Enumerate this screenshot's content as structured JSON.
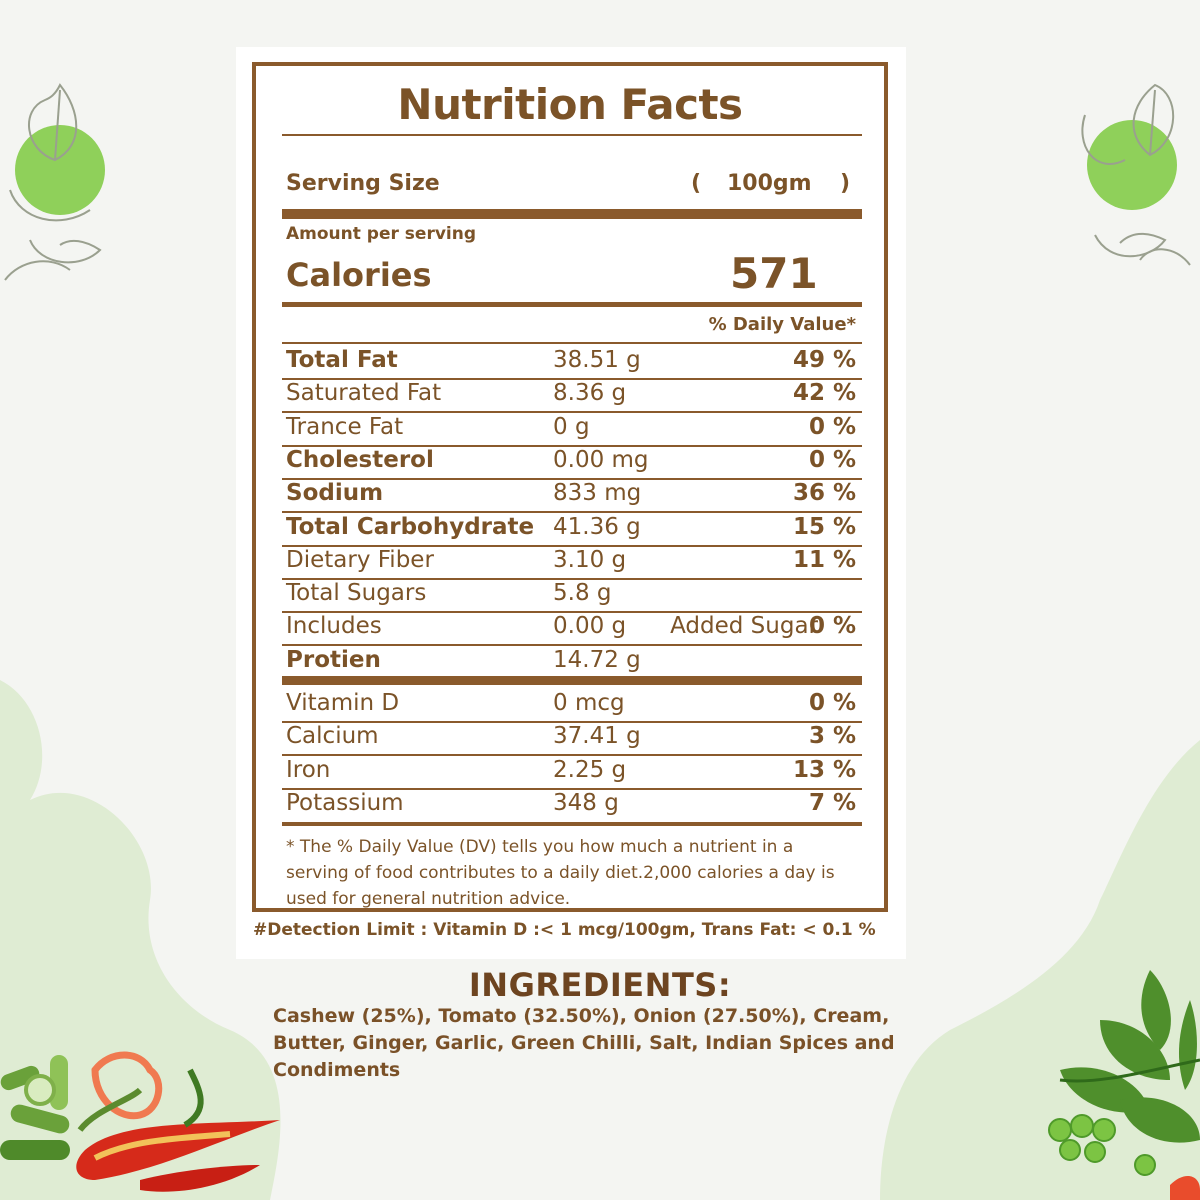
{
  "title": "Nutrition Facts",
  "serving": {
    "label": "Serving Size",
    "open": "(",
    "value": "100gm",
    "close": ")"
  },
  "amount_per_serving": "Amount per serving",
  "calories": {
    "label": "Calories",
    "value": "571"
  },
  "daily_value_header": "% Daily Value*",
  "rows": [
    {
      "name": "Total Fat",
      "amount": "38.51 g",
      "pct": "49 %",
      "bold": true
    },
    {
      "name": "Saturated Fat",
      "amount": "8.36 g",
      "pct": "42 %",
      "bold": false
    },
    {
      "name": "Trance Fat",
      "amount": "0 g",
      "pct": "0 %",
      "bold": false
    },
    {
      "name": "Cholesterol",
      "amount": "0.00 mg",
      "pct": "0 %",
      "bold": true
    },
    {
      "name": "Sodium",
      "amount": "833 mg",
      "pct": "36 %",
      "bold": true
    },
    {
      "name": "Total Carbohydrate",
      "amount": "41.36 g",
      "pct": "15 %",
      "bold": true
    },
    {
      "name": "Dietary Fiber",
      "amount": "3.10 g",
      "pct": "11 %",
      "bold": false
    },
    {
      "name": "Total Sugars",
      "amount": "5.8 g",
      "pct": "",
      "bold": false
    },
    {
      "name": "Includes",
      "amount": "0.00 g",
      "added": "Added Sugar",
      "pct": "0 %",
      "bold": false
    },
    {
      "name": "Protien",
      "amount": "14.72 g",
      "pct": "",
      "bold": true
    }
  ],
  "vitamins": [
    {
      "name": "Vitamin D",
      "amount": "0 mcg",
      "pct": "0 %"
    },
    {
      "name": "Calcium",
      "amount": "37.41 g",
      "pct": "3 %"
    },
    {
      "name": "Iron",
      "amount": "2.25 g",
      "pct": "13 %"
    },
    {
      "name": "Potassium",
      "amount": "348 g",
      "pct": "7 %"
    }
  ],
  "footnote": "* The % Daily Value (DV) tells you how much a nutrient in a serving of food contributes to a daily diet.2,000 calories a day is used for general nutrition advice.",
  "detection_limit": "#Detection Limit : Vitamin D :< 1 mcg/100gm, Trans Fat: < 0.1 %",
  "ingredients": {
    "title": "INGREDIENTS:",
    "text": "Cashew (25%), Tomato (32.50%), Onion (27.50%), Cream, Butter, Ginger, Garlic, Green Chilli, Salt, Indian Spices and Condiments"
  },
  "colors": {
    "brown": "#8a5a2c",
    "leaf_green": "#8fcf5a",
    "blob_green": "#dcebd0"
  },
  "decor_icons": [
    "leaf-circle-icon",
    "leaf-circle-icon",
    "chilli-pepper-image",
    "spinach-peas-image"
  ]
}
